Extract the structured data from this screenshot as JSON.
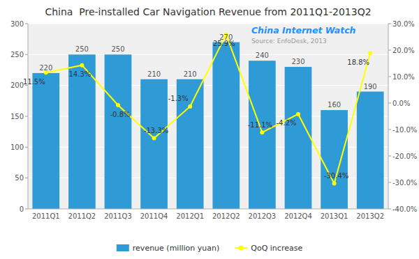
{
  "chart_data": {
    "type": "bar",
    "title": "China  Pre-installed Car Navigation Revenue from 2011Q1-2013Q2",
    "categories": [
      "2011Q1",
      "2011Q2",
      "2011Q3",
      "2011Q4",
      "2012Q1",
      "2012Q2",
      "2012Q3",
      "2012Q4",
      "2013Q1",
      "2013Q2"
    ],
    "series": [
      {
        "name": "revenue (million yuan)",
        "type": "bar",
        "color": "#2E9BD6",
        "data_labels": true,
        "values": [
          220,
          250,
          250,
          210,
          210,
          270,
          240,
          230,
          160,
          190
        ]
      },
      {
        "name": "QoQ increase",
        "type": "line",
        "axis": "y2",
        "color": "#FFFF00",
        "marker": "circle",
        "data_labels": true,
        "values": [
          11.5,
          14.3,
          -0.8,
          -13.3,
          -1.3,
          25.9,
          -11.1,
          -4.2,
          -30.4,
          18.8
        ],
        "value_labels": [
          "11.5%",
          "14.3%",
          "-0.8%",
          "-13.3%",
          "-1.3%",
          "25.9%",
          "-11.1%",
          "-4.2%",
          "-30.4%",
          "18.8%"
        ]
      }
    ],
    "ylim": [
      0,
      300
    ],
    "yticks": [
      0,
      50,
      100,
      150,
      200,
      250,
      300
    ],
    "y2lim": [
      -40.0,
      30.0
    ],
    "y2ticks": [
      {
        "value": -40.0,
        "label": "-40.0%"
      },
      {
        "value": -30.0,
        "label": "-30.0%"
      },
      {
        "value": -20.0,
        "label": "-20.0%"
      },
      {
        "value": -10.0,
        "label": "-10.0%"
      },
      {
        "value": 0.0,
        "label": "0.0%"
      },
      {
        "value": 10.0,
        "label": "10.0%"
      },
      {
        "value": 20.0,
        "label": "20.0%"
      },
      {
        "value": 30.0,
        "label": "30.0%"
      }
    ],
    "grid": true,
    "legend": "bottom",
    "annotations": [
      "China Internet Watch",
      "Source: EnfoDesk, 2013"
    ]
  }
}
